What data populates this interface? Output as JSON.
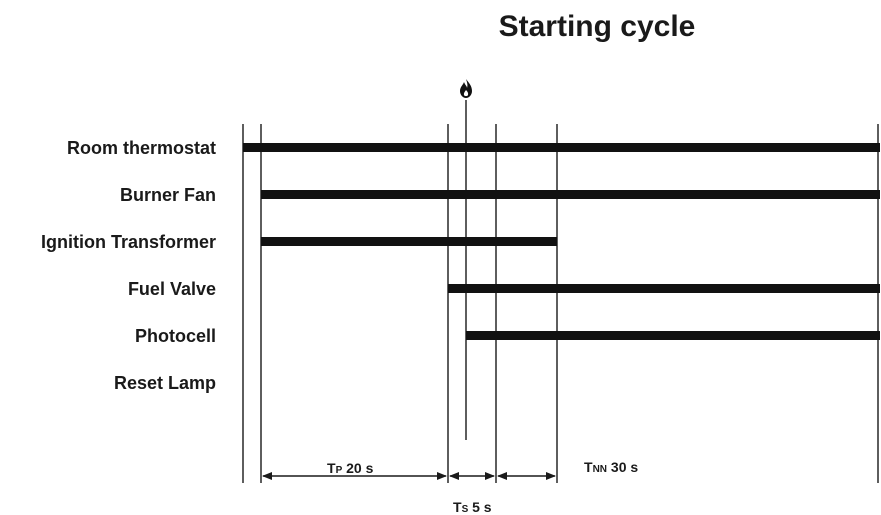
{
  "title": "Starting cycle",
  "flame_icon": "flame-icon",
  "rows": [
    {
      "label": "Room thermostat",
      "on_from": "start-room",
      "on_to": "end"
    },
    {
      "label": "Burner Fan",
      "on_from": "start-fan",
      "on_to": "end"
    },
    {
      "label": "Ignition Transformer",
      "on_from": "start-fan",
      "on_to": "t-ign-off"
    },
    {
      "label": "Fuel Valve",
      "on_from": "t-valve",
      "on_to": "end"
    },
    {
      "label": "Photocell",
      "on_from": "t-flame",
      "on_to": "end"
    },
    {
      "label": "Reset Lamp",
      "on_from": null,
      "on_to": null
    }
  ],
  "intervals": {
    "tp": {
      "main": "T",
      "sub": "P",
      "value": " 20 s"
    },
    "ts": {
      "main": "T",
      "sub": "S",
      "value": " 5 s"
    },
    "tnn": {
      "main": "T",
      "sub": "NN",
      "value": " 30 s"
    }
  },
  "colors": {
    "line": "#1a1a1a",
    "bar": "#111111",
    "background": "#ffffff"
  }
}
